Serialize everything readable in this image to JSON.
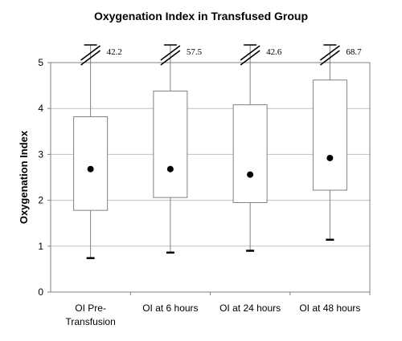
{
  "chart_data": {
    "type": "boxplot",
    "title": "Oxygenation Index in Transfused Group",
    "ylabel": "Oxygenation Index",
    "xlabel": "",
    "ylim": [
      0,
      5
    ],
    "yticks": [
      "0",
      "1",
      "2",
      "3",
      "4",
      "5"
    ],
    "grid": true,
    "categories": [
      [
        "OI Pre-",
        "Transfusion"
      ],
      [
        "OI at 6 hours"
      ],
      [
        "OI at 24 hours"
      ],
      [
        "OI at 48 hours"
      ]
    ],
    "boxes": [
      {
        "min": 0.74,
        "q1": 1.78,
        "median": 2.68,
        "q3": 3.82,
        "max_label": "42.2"
      },
      {
        "min": 0.86,
        "q1": 2.06,
        "median": 2.68,
        "q3": 4.38,
        "max_label": "57.5"
      },
      {
        "min": 0.9,
        "q1": 1.95,
        "median": 2.56,
        "q3": 4.08,
        "max_label": "42.6"
      },
      {
        "min": 1.14,
        "q1": 2.22,
        "median": 2.92,
        "q3": 4.62,
        "max_label": "68.7"
      }
    ],
    "legend": "none"
  }
}
